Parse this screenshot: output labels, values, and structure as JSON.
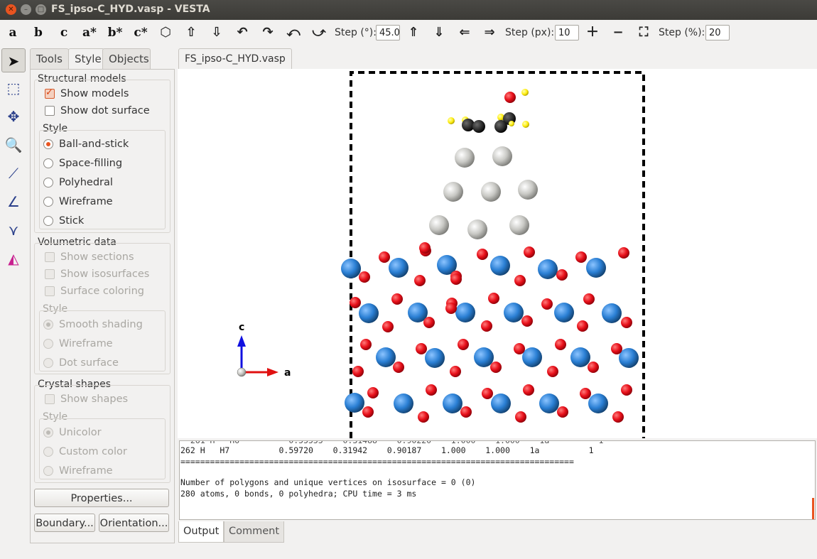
{
  "window": {
    "title": "FS_ipso-C_HYD.vasp - VESTA"
  },
  "toolbar": {
    "axes": [
      "a",
      "b",
      "c",
      "a*",
      "b*",
      "c*"
    ],
    "rotation_icons": [
      "polyhedron-icon",
      "arrow-up-icon",
      "arrow-down-icon",
      "arrow-left-icon",
      "arrow-right-icon",
      "rotate-left-icon",
      "rotate-right-icon"
    ],
    "step_deg_label": "Step (°):",
    "step_deg_value": "45.0",
    "step_px_label": "Step (px):",
    "step_px_value": "10",
    "step_pct_label": "Step (%):",
    "step_pct_value": "20"
  },
  "side_tabs": [
    "Tools",
    "Style",
    "Objects"
  ],
  "style_panel": {
    "structural_models": {
      "title": "Structural models",
      "show_models": "Show models",
      "show_dot_surface": "Show dot surface",
      "style_title": "Style",
      "options": [
        "Ball-and-stick",
        "Space-filling",
        "Polyhedral",
        "Wireframe",
        "Stick"
      ],
      "selected": "Ball-and-stick"
    },
    "volumetric_data": {
      "title": "Volumetric data",
      "show_sections": "Show sections",
      "show_isosurfaces": "Show isosurfaces",
      "surface_coloring": "Surface coloring",
      "style_title": "Style",
      "options": [
        "Smooth shading",
        "Wireframe",
        "Dot surface"
      ]
    },
    "crystal_shapes": {
      "title": "Crystal shapes",
      "show_shapes": "Show shapes",
      "style_title": "Style",
      "options": [
        "Unicolor",
        "Custom color",
        "Wireframe"
      ]
    },
    "buttons": {
      "properties": "Properties...",
      "boundary": "Boundary...",
      "orientation": "Orientation..."
    }
  },
  "doc_tab": "FS_ipso-C_HYD.vasp",
  "axes_indicator": {
    "c": "c",
    "a": "a"
  },
  "colors": {
    "oxygen": "#e8101a",
    "metal": "#2a7fd4",
    "grey": "#c8c8c4",
    "carbon": "#2b2b2b",
    "hydrogen": "#ffee10",
    "accent": "#e95420"
  },
  "console": {
    "atom_row": "262 H   H7          0.59720    0.31942    0.90187    1.000    1.000    1a          1",
    "separator": "================================================================================",
    "polygons": "Number of polygons and unique vertices on isosurface = 0 (0)",
    "summary": "280 atoms, 0 bonds, 0 polyhedra; CPU time = 3 ms"
  },
  "output_tabs": {
    "output": "Output",
    "comment": "Comment"
  }
}
